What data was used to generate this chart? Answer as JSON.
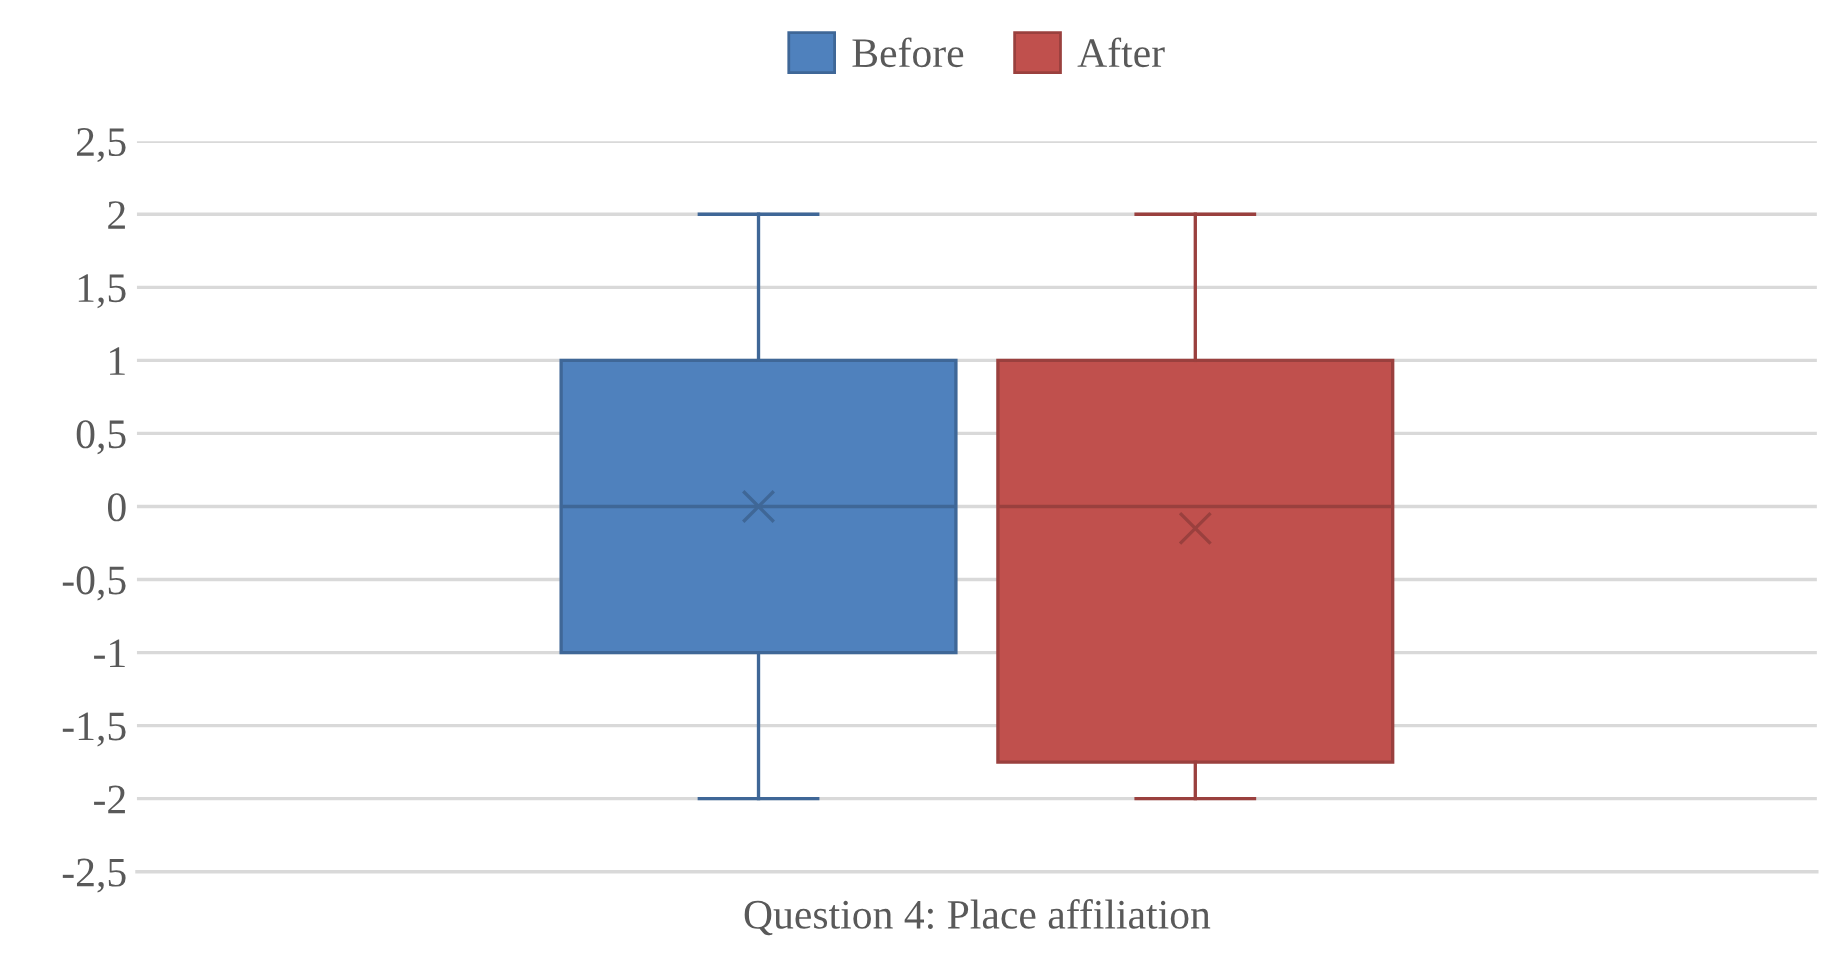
{
  "chart_data": {
    "type": "box",
    "categories": [
      "Question 4: Place affiliation"
    ],
    "series": [
      {
        "name": "Before",
        "color": "#4f81bd",
        "boxes": [
          {
            "low": -2,
            "q1": -1,
            "median": 0,
            "q3": 1,
            "high": 2,
            "mean": 0
          }
        ]
      },
      {
        "name": "After",
        "color": "#c0504d",
        "boxes": [
          {
            "low": -2,
            "q1": -1.75,
            "median": 0,
            "q3": 1,
            "high": 2,
            "mean": -0.15
          }
        ]
      }
    ],
    "ylim": [
      -2.5,
      2.5
    ],
    "yticks": [
      {
        "value": -2.5,
        "label": "-2,5"
      },
      -2,
      {
        "value": -1.5,
        "label": "-1,5"
      },
      -1,
      {
        "value": -0.5,
        "label": "-0,5"
      },
      0,
      {
        "value": 0.5,
        "label": "0,5"
      },
      1,
      {
        "value": 1.5,
        "label": "1,5"
      },
      2,
      {
        "value": 2.5,
        "label": "2,5"
      }
    ],
    "grid": "y",
    "legend": "top",
    "marker": "cross"
  }
}
